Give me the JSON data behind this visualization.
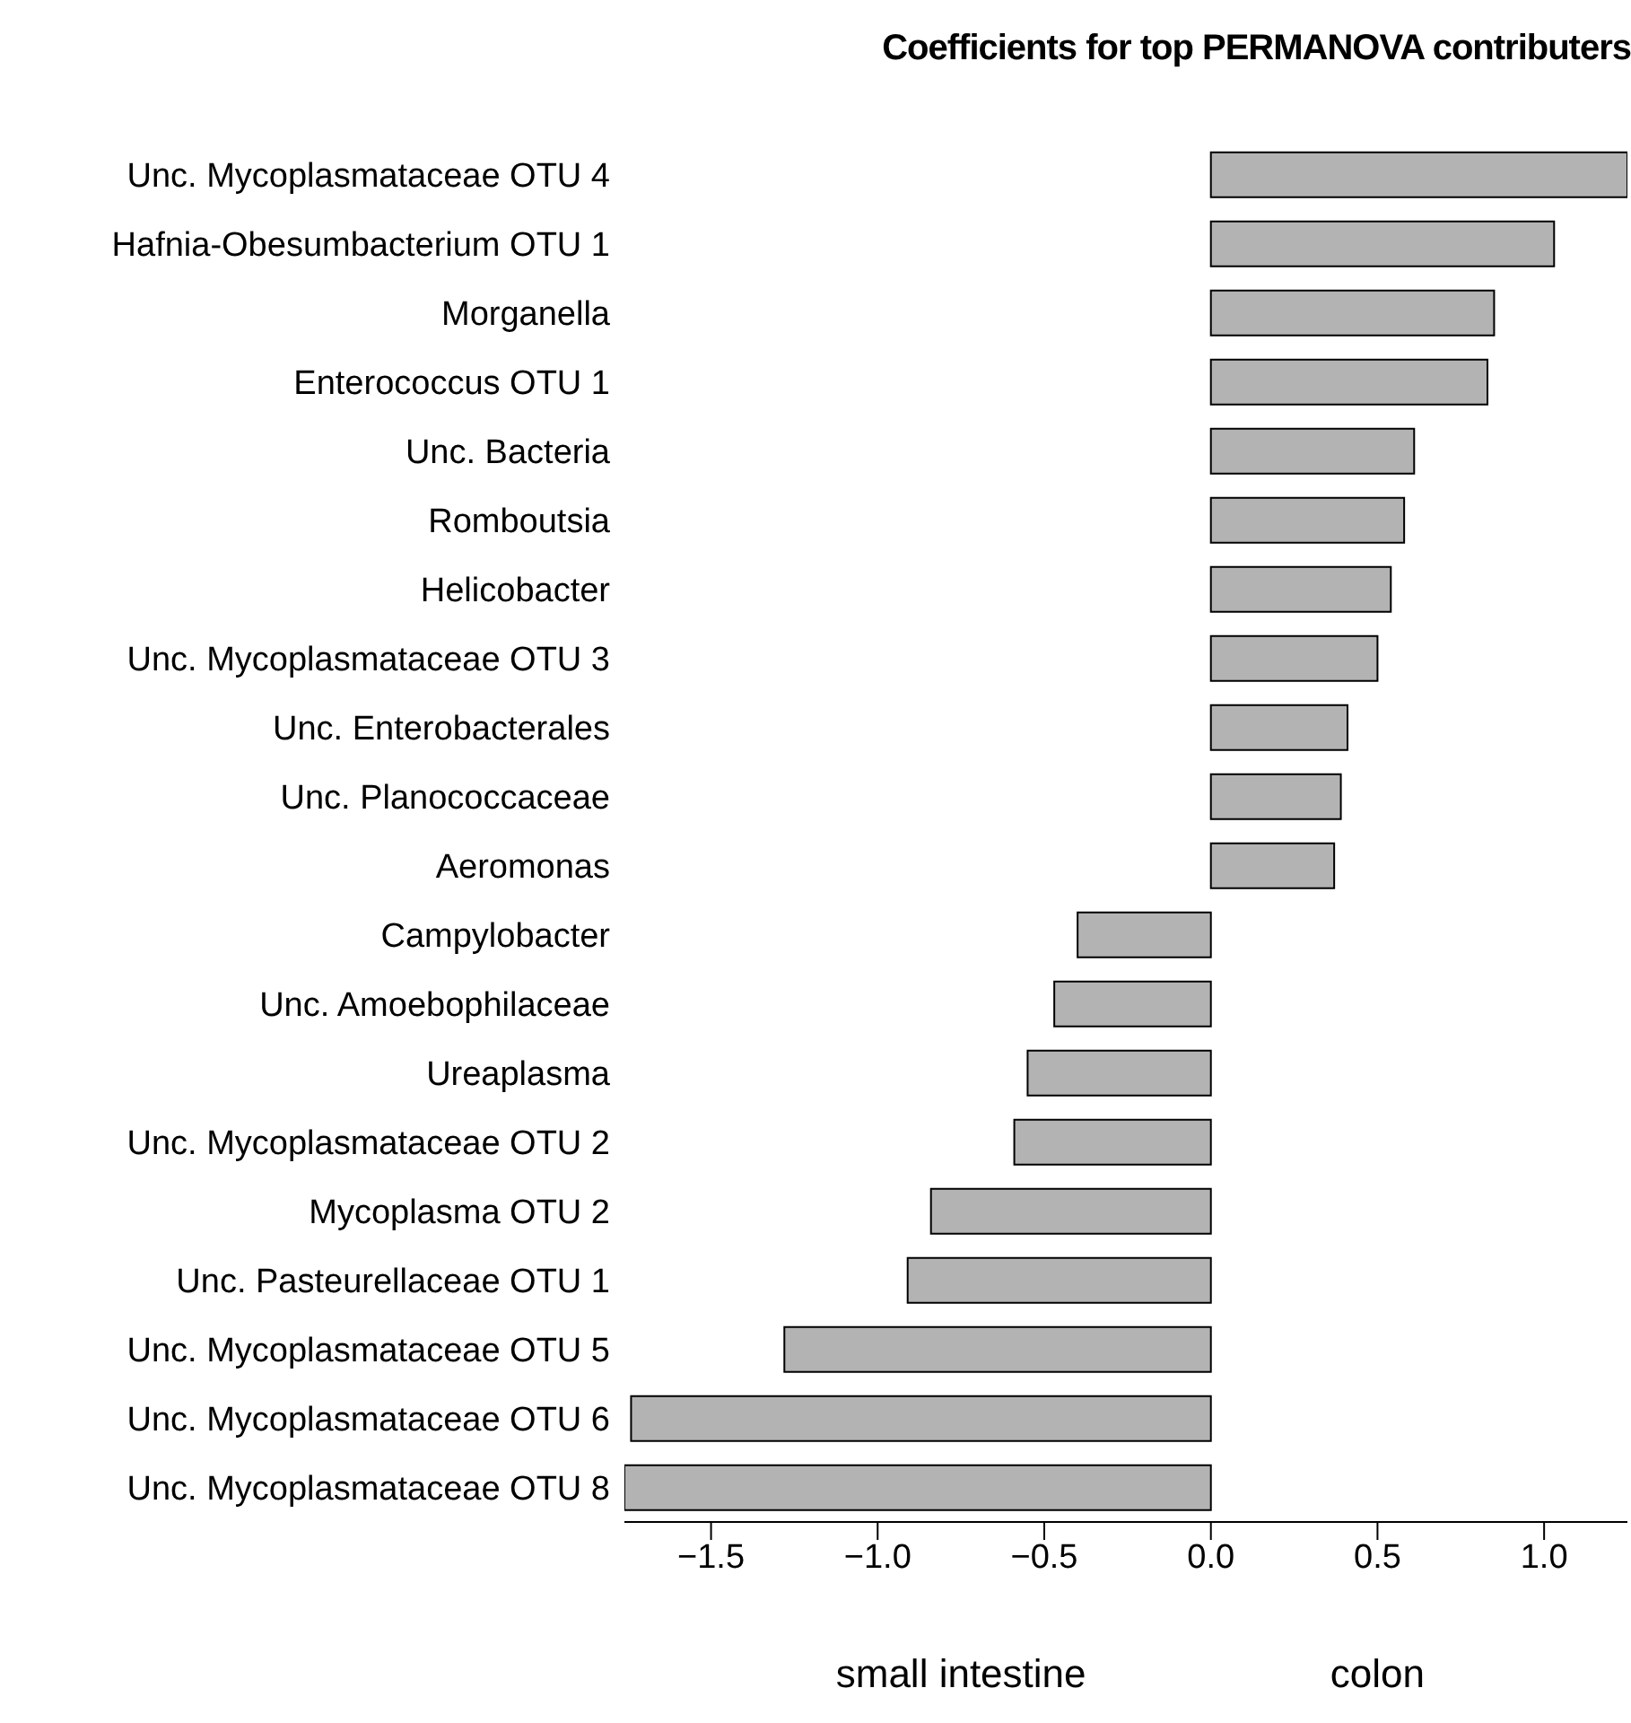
{
  "chart_data": {
    "type": "bar",
    "orientation": "horizontal",
    "title": "Coefficients for top PERMANOVA contributers",
    "categories": [
      "Unc. Mycoplasmataceae OTU 4",
      "Hafnia-Obesumbacterium OTU 1",
      "Morganella",
      "Enterococcus OTU 1",
      "Unc. Bacteria",
      "Romboutsia",
      "Helicobacter",
      "Unc. Mycoplasmataceae OTU 3",
      "Unc. Enterobacterales",
      "Unc. Planococcaceae",
      "Aeromonas",
      "Campylobacter",
      "Unc. Amoebophilaceae",
      "Ureaplasma",
      "Unc. Mycoplasmataceae OTU 2",
      "Mycoplasma OTU 2",
      "Unc. Pasteurellaceae OTU 1",
      "Unc. Mycoplasmataceae OTU 5",
      "Unc. Mycoplasmataceae OTU 6",
      "Unc. Mycoplasmataceae OTU 8"
    ],
    "values": [
      1.25,
      1.03,
      0.85,
      0.83,
      0.61,
      0.58,
      0.54,
      0.5,
      0.41,
      0.39,
      0.37,
      -0.4,
      -0.47,
      -0.55,
      -0.59,
      -0.84,
      -0.91,
      -1.28,
      -1.74,
      -1.76
    ],
    "color": "#b3b3b3",
    "xlim": [
      -1.76,
      1.25
    ],
    "xticks": [
      {
        "value": -1.5,
        "label": "−1.5"
      },
      {
        "value": -1,
        "label": "−1.0"
      },
      {
        "value": -0.5,
        "label": "−0.5"
      },
      {
        "value": 0,
        "label": "0.0"
      },
      {
        "value": 0.5,
        "label": "0.5"
      },
      {
        "value": 1,
        "label": "1.0"
      }
    ],
    "annotations": [
      "small intestine",
      "colon"
    ],
    "grid": false,
    "legend": false
  }
}
